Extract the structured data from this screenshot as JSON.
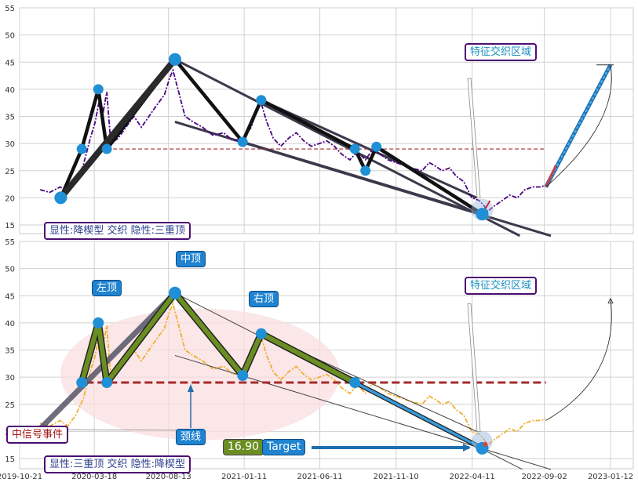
{
  "colors": {
    "price_top": "#4b0082",
    "price_bottom": "#f0b030",
    "pattern_top": "#111111",
    "pattern_bottom_fill": "#6b8e23",
    "trend": "#3a3a4a",
    "neckline": "#a52a2a",
    "node": "#1f8fd6",
    "target_line": "#3a9ad8",
    "ellipse": "#f9dde0",
    "grid": "#d0d0d0"
  },
  "chart_data": [
    {
      "type": "line",
      "panel": "top",
      "yticks": [
        15,
        20,
        25,
        30,
        35,
        40,
        45,
        50,
        55
      ],
      "ylim": [
        13,
        55
      ],
      "series": [
        {
          "values": [
            [
              "2019-12-01",
              21.5
            ],
            [
              "2019-12-20",
              21.0
            ],
            [
              "2020-01-10",
              22.0
            ],
            [
              "2020-01-25",
              21.0
            ],
            [
              "2020-02-10",
              23.0
            ],
            [
              "2020-02-25",
              26.0
            ],
            [
              "2020-03-10",
              31.0
            ],
            [
              "2020-03-20",
              34.0
            ],
            [
              "2020-03-28",
              38.0
            ],
            [
              "2020-04-05",
              36.0
            ],
            [
              "2020-04-12",
              39.5
            ],
            [
              "2020-04-20",
              30.0
            ],
            [
              "2020-05-05",
              31.0
            ],
            [
              "2020-05-20",
              33.0
            ],
            [
              "2020-06-05",
              35.0
            ],
            [
              "2020-06-20",
              33.0
            ],
            [
              "2020-07-05",
              35.0
            ],
            [
              "2020-07-20",
              37.0
            ],
            [
              "2020-08-05",
              39.0
            ],
            [
              "2020-08-15",
              42.0
            ],
            [
              "2020-08-22",
              43.5
            ],
            [
              "2020-09-01",
              40.0
            ],
            [
              "2020-09-15",
              35.0
            ],
            [
              "2020-10-01",
              34.0
            ],
            [
              "2020-10-20",
              33.0
            ],
            [
              "2020-11-10",
              31.5
            ],
            [
              "2020-12-01",
              32.0
            ],
            [
              "2020-12-20",
              30.5
            ],
            [
              "2021-01-10",
              31.0
            ],
            [
              "2021-01-25",
              33.0
            ],
            [
              "2021-02-05",
              36.0
            ],
            [
              "2021-02-12",
              38.0
            ],
            [
              "2021-02-25",
              34.0
            ],
            [
              "2021-03-10",
              31.0
            ],
            [
              "2021-03-25",
              29.5
            ],
            [
              "2021-04-10",
              31.0
            ],
            [
              "2021-04-25",
              32.0
            ],
            [
              "2021-05-10",
              30.5
            ],
            [
              "2021-05-25",
              29.5
            ],
            [
              "2021-06-10",
              30.0
            ],
            [
              "2021-06-25",
              30.5
            ],
            [
              "2021-07-10",
              29.5
            ],
            [
              "2021-07-25",
              28.0
            ],
            [
              "2021-08-10",
              27.0
            ],
            [
              "2021-08-25",
              28.5
            ],
            [
              "2021-09-10",
              27.0
            ],
            [
              "2021-09-25",
              29.0
            ],
            [
              "2021-10-10",
              28.0
            ],
            [
              "2021-10-25",
              27.0
            ],
            [
              "2021-11-10",
              26.5
            ],
            [
              "2021-11-25",
              26.0
            ],
            [
              "2021-12-10",
              25.5
            ],
            [
              "2022-01-01",
              25.0
            ],
            [
              "2022-01-15",
              26.5
            ],
            [
              "2022-01-25",
              26.0
            ],
            [
              "2022-02-10",
              25.0
            ],
            [
              "2022-02-25",
              25.5
            ],
            [
              "2022-03-10",
              24.0
            ],
            [
              "2022-03-25",
              23.0
            ],
            [
              "2022-04-10",
              20.0
            ],
            [
              "2022-04-25",
              19.5
            ],
            [
              "2022-05-05",
              18.5
            ],
            [
              "2022-05-12",
              17.5
            ],
            [
              "2022-05-25",
              18.5
            ],
            [
              "2022-06-10",
              19.5
            ],
            [
              "2022-06-25",
              20.5
            ],
            [
              "2022-07-10",
              20.0
            ],
            [
              "2022-07-25",
              21.5
            ],
            [
              "2022-08-10",
              22.0
            ],
            [
              "2022-08-25",
              22.0
            ],
            [
              "2022-09-05",
              22.3
            ]
          ]
        }
      ],
      "pattern_points": [
        [
          "2020-01-11",
          20.0
        ],
        [
          "2020-02-22",
          29.0
        ],
        [
          "2020-03-26",
          40.0
        ],
        [
          "2020-04-12",
          29.0
        ],
        [
          "2020-08-26",
          45.5
        ],
        [
          "2021-01-08",
          30.3
        ],
        [
          "2021-02-14",
          38.0
        ],
        [
          "2021-08-20",
          29.0
        ],
        [
          "2021-09-10",
          25.0
        ],
        [
          "2021-10-02",
          29.4
        ],
        [
          "2022-05-01",
          17.0
        ]
      ],
      "trendlines": [
        [
          [
            "2020-08-26",
            45.5
          ],
          [
            "2022-07-15",
            13.0
          ]
        ],
        [
          [
            "2020-08-26",
            34.0
          ],
          [
            "2022-09-15",
            13.0
          ]
        ],
        [
          [
            "2021-02-14",
            38.0
          ],
          [
            "2022-04-20",
            20.0
          ]
        ],
        [
          [
            "2021-01-08",
            30.3
          ],
          [
            "2022-05-01",
            17.0
          ]
        ]
      ],
      "neckline": {
        "y": 29.0,
        "from": "2020-04-12",
        "to": "2022-09-05"
      },
      "target_arrow": {
        "from": [
          "2022-09-05",
          22.0
        ],
        "to": [
          "2023-01-12",
          44.5
        ]
      },
      "labels": {
        "feature_zone": "特征交织区域",
        "legend": "显性:降楔型 交织 隐性:三重顶"
      }
    },
    {
      "type": "line",
      "panel": "bottom",
      "yticks": [
        15,
        20,
        25,
        30,
        35,
        40,
        45,
        50,
        55
      ],
      "ylim": [
        13,
        55
      ],
      "xticks": [
        "2019-10-21",
        "2020-03-18",
        "2020-08-13",
        "2021-01-11",
        "2021-06-11",
        "2021-11-10",
        "2022-04-11",
        "2022-09-02",
        "2023-01-12"
      ],
      "pattern_points": [
        [
          "2020-02-22",
          29.0
        ],
        [
          "2020-03-26",
          40.0
        ],
        [
          "2020-04-12",
          29.0
        ],
        [
          "2020-08-26",
          45.5
        ],
        [
          "2021-01-08",
          30.3
        ],
        [
          "2021-02-14",
          38.0
        ],
        [
          "2021-08-20",
          29.0
        ],
        [
          "2022-05-01",
          16.9
        ]
      ],
      "neckline": {
        "y": 29.0,
        "from": "2019-12-01",
        "to": "2022-09-05"
      },
      "target_price": 16.9,
      "labels": {
        "left_top": "左顶",
        "mid_top": "中顶",
        "right_top": "右顶",
        "neckline": "颈线",
        "signal": "中信号事件",
        "price": "16.90",
        "target": "Target",
        "feature_zone": "特征交织区域",
        "legend": "显性:三重顶 交织 隐性:降楔型"
      }
    }
  ]
}
